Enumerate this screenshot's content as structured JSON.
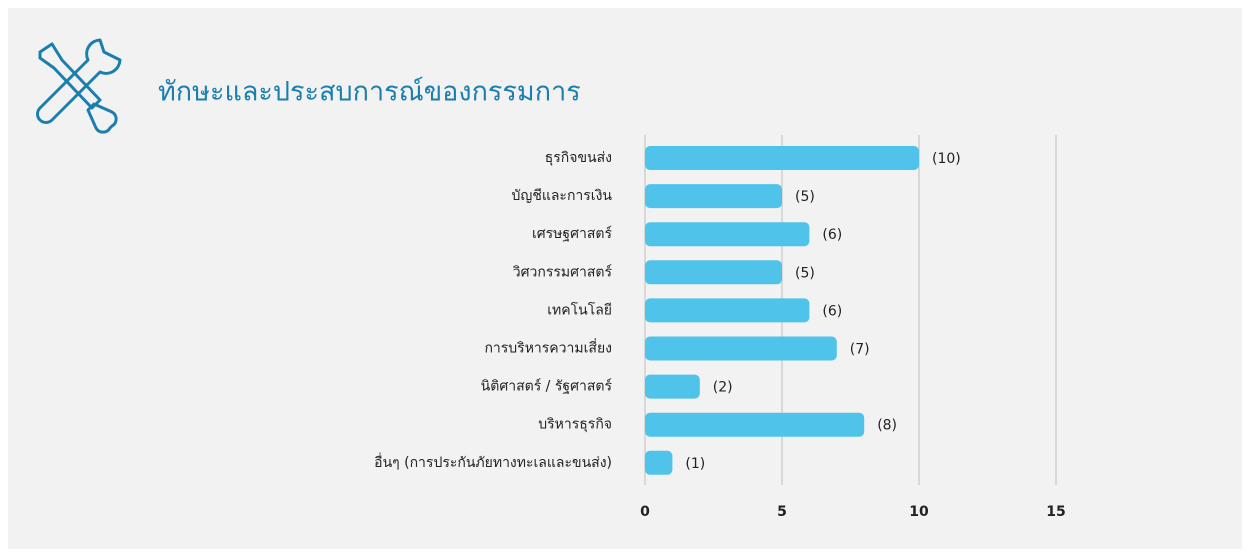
{
  "chart_data": {
    "type": "bar",
    "orientation": "horizontal",
    "title": "ทักษะและประสบการณ์ของกรรมการ",
    "categories": [
      "ธุรกิจขนส่ง",
      "บัญชีและการเงิน",
      "เศรษฐศาสตร์",
      "วิศวกรรมศาสตร์",
      "เทคโนโลยี",
      "การบริหารความเสี่ยง",
      "นิติศาสตร์ / รัฐศาสตร์",
      "บริหารธุรกิจ",
      "อื่นๆ (การประกันภัยทางทะเลและขนส่ง)"
    ],
    "values": [
      10,
      5,
      6,
      5,
      6,
      7,
      2,
      8,
      1
    ],
    "value_labels": [
      "(10)",
      "(5)",
      "(6)",
      "(5)",
      "(6)",
      "(7)",
      "(2)",
      "(8)",
      "(1)"
    ],
    "color": "#4fc3ea",
    "xlim": [
      0,
      15
    ],
    "xticks": [
      0,
      5,
      10,
      15
    ],
    "grid": true
  }
}
